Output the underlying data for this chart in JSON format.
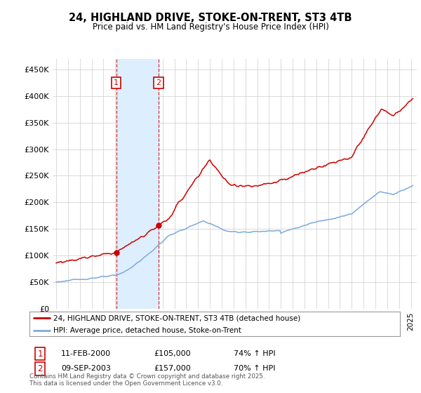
{
  "title": "24, HIGHLAND DRIVE, STOKE-ON-TRENT, ST3 4TB",
  "subtitle": "Price paid vs. HM Land Registry's House Price Index (HPI)",
  "legend_line1": "24, HIGHLAND DRIVE, STOKE-ON-TRENT, ST3 4TB (detached house)",
  "legend_line2": "HPI: Average price, detached house, Stoke-on-Trent",
  "transaction1_date_label": "11-FEB-2000",
  "transaction1_price": 105000,
  "transaction1_hpi_text": "74% ↑ HPI",
  "transaction1_x": 2000.083,
  "transaction2_date_label": "09-SEP-2003",
  "transaction2_price": 157000,
  "transaction2_hpi_text": "70% ↑ HPI",
  "transaction2_x": 2003.667,
  "footer": "Contains HM Land Registry data © Crown copyright and database right 2025.\nThis data is licensed under the Open Government Licence v3.0.",
  "hpi_color": "#7aaadd",
  "price_color": "#cc0000",
  "shade_color": "#ddeeff",
  "ylim": [
    0,
    470000
  ],
  "yticks": [
    0,
    50000,
    100000,
    150000,
    200000,
    250000,
    300000,
    350000,
    400000,
    450000
  ],
  "background_color": "#ffffff",
  "grid_color": "#cccccc",
  "num_box_color": "#cc0000"
}
